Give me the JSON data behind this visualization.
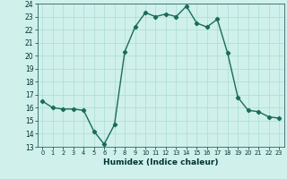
{
  "x": [
    0,
    1,
    2,
    3,
    4,
    5,
    6,
    7,
    8,
    9,
    10,
    11,
    12,
    13,
    14,
    15,
    16,
    17,
    18,
    19,
    20,
    21,
    22,
    23
  ],
  "y": [
    16.5,
    16.0,
    15.9,
    15.9,
    15.8,
    14.2,
    13.2,
    14.7,
    20.3,
    22.2,
    23.3,
    23.0,
    23.2,
    23.0,
    23.8,
    22.5,
    22.2,
    22.8,
    20.2,
    16.8,
    15.8,
    15.7,
    15.3,
    15.2
  ],
  "xlabel": "Humidex (Indice chaleur)",
  "ylim": [
    13,
    24
  ],
  "xlim": [
    -0.5,
    23.5
  ],
  "yticks": [
    13,
    14,
    15,
    16,
    17,
    18,
    19,
    20,
    21,
    22,
    23,
    24
  ],
  "xticks": [
    0,
    1,
    2,
    3,
    4,
    5,
    6,
    7,
    8,
    9,
    10,
    11,
    12,
    13,
    14,
    15,
    16,
    17,
    18,
    19,
    20,
    21,
    22,
    23
  ],
  "line_color": "#1a6b5a",
  "bg_color": "#cff0eb",
  "grid_color": "#aaddd5",
  "marker": "D",
  "marker_size": 2.2,
  "line_width": 1.0
}
